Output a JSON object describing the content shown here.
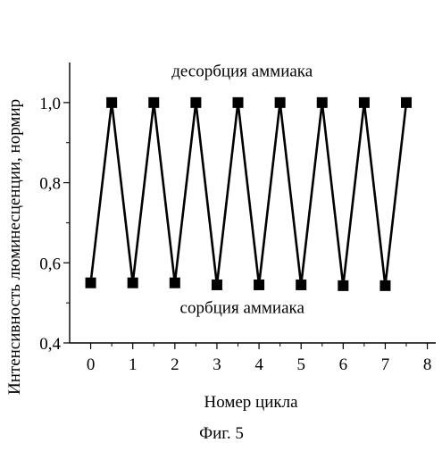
{
  "figure": {
    "caption": "Фиг. 5"
  },
  "chart_data": {
    "type": "line",
    "xlabel": "Номер цикла",
    "ylabel": "Интенсивность люминесценции, нормир",
    "xlim": [
      -0.5,
      8.2
    ],
    "ylim": [
      0.4,
      1.1
    ],
    "xticks": [
      0,
      1,
      2,
      3,
      4,
      5,
      6,
      7,
      8
    ],
    "yticks": [
      0.4,
      0.6,
      0.8,
      1.0
    ],
    "ytick_labels": [
      "0,4",
      "0,6",
      "0,8",
      "1,0"
    ],
    "grid": false,
    "marker": "square",
    "line_color": "#000000",
    "marker_color": "#000000",
    "series": [
      {
        "x": [
          0,
          0.5,
          1,
          1.5,
          2,
          2.5,
          3,
          3.5,
          4,
          4.5,
          5,
          5.5,
          6,
          6.5,
          7,
          7.5
        ],
        "values": [
          0.55,
          1.0,
          0.55,
          1.0,
          0.55,
          1.0,
          0.545,
          1.0,
          0.545,
          1.0,
          0.545,
          1.0,
          0.543,
          1.0,
          0.543,
          1.0
        ]
      }
    ],
    "annotations": [
      {
        "text": "десорбция аммиака",
        "x": 3.6,
        "y": 1.065
      },
      {
        "text": "сорбция аммиака",
        "x": 3.6,
        "y": 0.475
      }
    ]
  }
}
